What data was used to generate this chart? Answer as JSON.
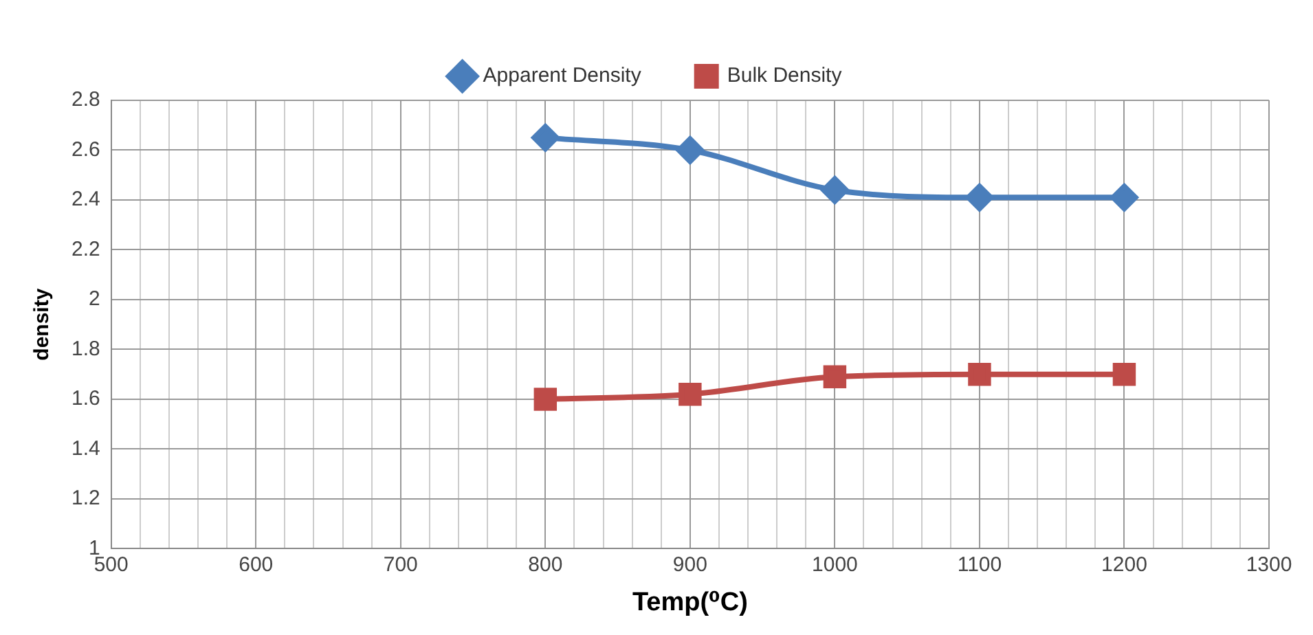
{
  "chart_data": {
    "type": "line",
    "xlabel": "Temp(⁰C)",
    "ylabel": "density",
    "x": [
      800,
      900,
      1000,
      1100,
      1200
    ],
    "series": [
      {
        "name": "Apparent Density",
        "color": "#4a7ebb",
        "values": [
          2.65,
          2.6,
          2.44,
          2.41,
          2.41
        ],
        "marker": "diamond"
      },
      {
        "name": "Bulk Density",
        "color": "#be4b48",
        "values": [
          1.6,
          1.62,
          1.69,
          1.7,
          1.7
        ],
        "marker": "square"
      }
    ],
    "xlim": [
      500,
      1300
    ],
    "xticks": [
      500,
      {
        "value": 520,
        "label": null
      },
      {
        "value": 540,
        "label": null
      },
      {
        "value": 560,
        "label": null
      },
      {
        "value": 580,
        "label": null
      },
      600,
      {
        "value": 620,
        "label": null
      },
      {
        "value": 640,
        "label": null
      },
      {
        "value": 660,
        "label": null
      },
      {
        "value": 680,
        "label": null
      },
      700,
      {
        "value": 720,
        "label": null
      },
      {
        "value": 740,
        "label": null
      },
      {
        "value": 760,
        "label": null
      },
      {
        "value": 780,
        "label": null
      },
      800,
      {
        "value": 820,
        "label": null
      },
      {
        "value": 840,
        "label": null
      },
      {
        "value": 860,
        "label": null
      },
      {
        "value": 880,
        "label": null
      },
      900,
      {
        "value": 920,
        "label": null
      },
      {
        "value": 940,
        "label": null
      },
      {
        "value": 960,
        "label": null
      },
      {
        "value": 980,
        "label": null
      },
      1000,
      {
        "value": 1020,
        "label": null
      },
      {
        "value": 1040,
        "label": null
      },
      {
        "value": 1060,
        "label": null
      },
      {
        "value": 1080,
        "label": null
      },
      1100,
      {
        "value": 1120,
        "label": null
      },
      {
        "value": 1140,
        "label": null
      },
      {
        "value": 1160,
        "label": null
      },
      {
        "value": 1180,
        "label": null
      },
      1200,
      {
        "value": 1220,
        "label": null
      },
      {
        "value": 1240,
        "label": null
      },
      {
        "value": 1260,
        "label": null
      },
      {
        "value": 1280,
        "label": null
      },
      1300
    ],
    "ylim": [
      1,
      2.8
    ],
    "yticks": [
      1,
      1.2,
      1.4,
      1.6,
      1.8,
      2,
      2.2,
      2.4,
      2.6,
      2.8
    ],
    "grid": true,
    "legend": "top",
    "line_style": "solid"
  }
}
